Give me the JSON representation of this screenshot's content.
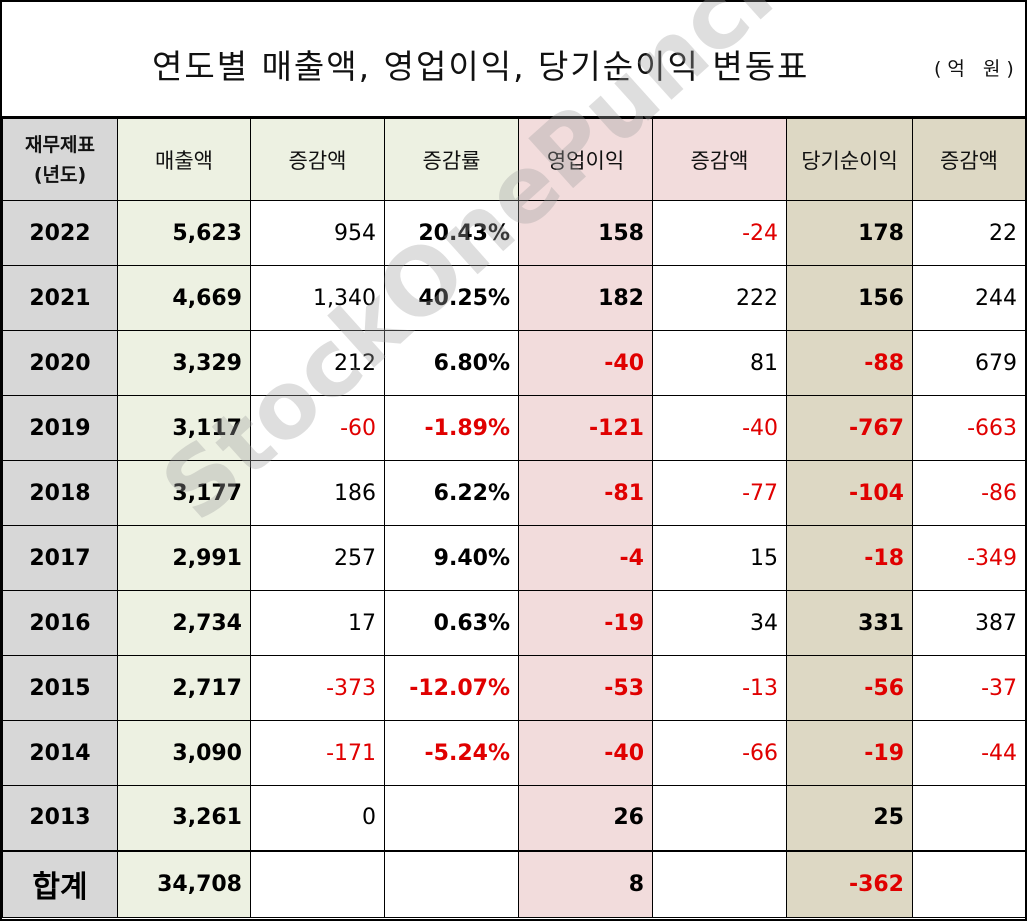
{
  "title": "연도별 매출액, 영업이익, 당기순이익 변동표",
  "unit": "(억 원)",
  "watermark": "StockOnePunch",
  "headers": {
    "year_line1": "재무제표",
    "year_line2": "(년도)",
    "revenue": "매출액",
    "revenue_change": "증감액",
    "revenue_rate": "증감률",
    "operating_income": "영업이익",
    "operating_change": "증감액",
    "net_income": "당기순이익",
    "net_change": "증감액"
  },
  "rows": [
    {
      "year": "2022",
      "revenue": "5,623",
      "revenue_change": "954",
      "revenue_rate": "20.43%",
      "operating_income": "158",
      "operating_change": "-24",
      "net_income": "178",
      "net_change": "22"
    },
    {
      "year": "2021",
      "revenue": "4,669",
      "revenue_change": "1,340",
      "revenue_rate": "40.25%",
      "operating_income": "182",
      "operating_change": "222",
      "net_income": "156",
      "net_change": "244"
    },
    {
      "year": "2020",
      "revenue": "3,329",
      "revenue_change": "212",
      "revenue_rate": "6.80%",
      "operating_income": "-40",
      "operating_change": "81",
      "net_income": "-88",
      "net_change": "679"
    },
    {
      "year": "2019",
      "revenue": "3,117",
      "revenue_change": "-60",
      "revenue_rate": "-1.89%",
      "operating_income": "-121",
      "operating_change": "-40",
      "net_income": "-767",
      "net_change": "-663"
    },
    {
      "year": "2018",
      "revenue": "3,177",
      "revenue_change": "186",
      "revenue_rate": "6.22%",
      "operating_income": "-81",
      "operating_change": "-77",
      "net_income": "-104",
      "net_change": "-86"
    },
    {
      "year": "2017",
      "revenue": "2,991",
      "revenue_change": "257",
      "revenue_rate": "9.40%",
      "operating_income": "-4",
      "operating_change": "15",
      "net_income": "-18",
      "net_change": "-349"
    },
    {
      "year": "2016",
      "revenue": "2,734",
      "revenue_change": "17",
      "revenue_rate": "0.63%",
      "operating_income": "-19",
      "operating_change": "34",
      "net_income": "331",
      "net_change": "387"
    },
    {
      "year": "2015",
      "revenue": "2,717",
      "revenue_change": "-373",
      "revenue_rate": "-12.07%",
      "operating_income": "-53",
      "operating_change": "-13",
      "net_income": "-56",
      "net_change": "-37"
    },
    {
      "year": "2014",
      "revenue": "3,090",
      "revenue_change": "-171",
      "revenue_rate": "-5.24%",
      "operating_income": "-40",
      "operating_change": "-66",
      "net_income": "-19",
      "net_change": "-44"
    },
    {
      "year": "2013",
      "revenue": "3,261",
      "revenue_change": "0",
      "revenue_rate": "",
      "operating_income": "26",
      "operating_change": "",
      "net_income": "25",
      "net_change": ""
    }
  ],
  "total": {
    "label": "합계",
    "revenue": "34,708",
    "operating_income": "8",
    "net_income": "-362"
  },
  "colors": {
    "negative": "#e00000",
    "year_column": "#d7d7d7",
    "revenue_group": "#edf1e2",
    "operating_group": "#f2dcdc",
    "net_group": "#ddd8c4"
  }
}
